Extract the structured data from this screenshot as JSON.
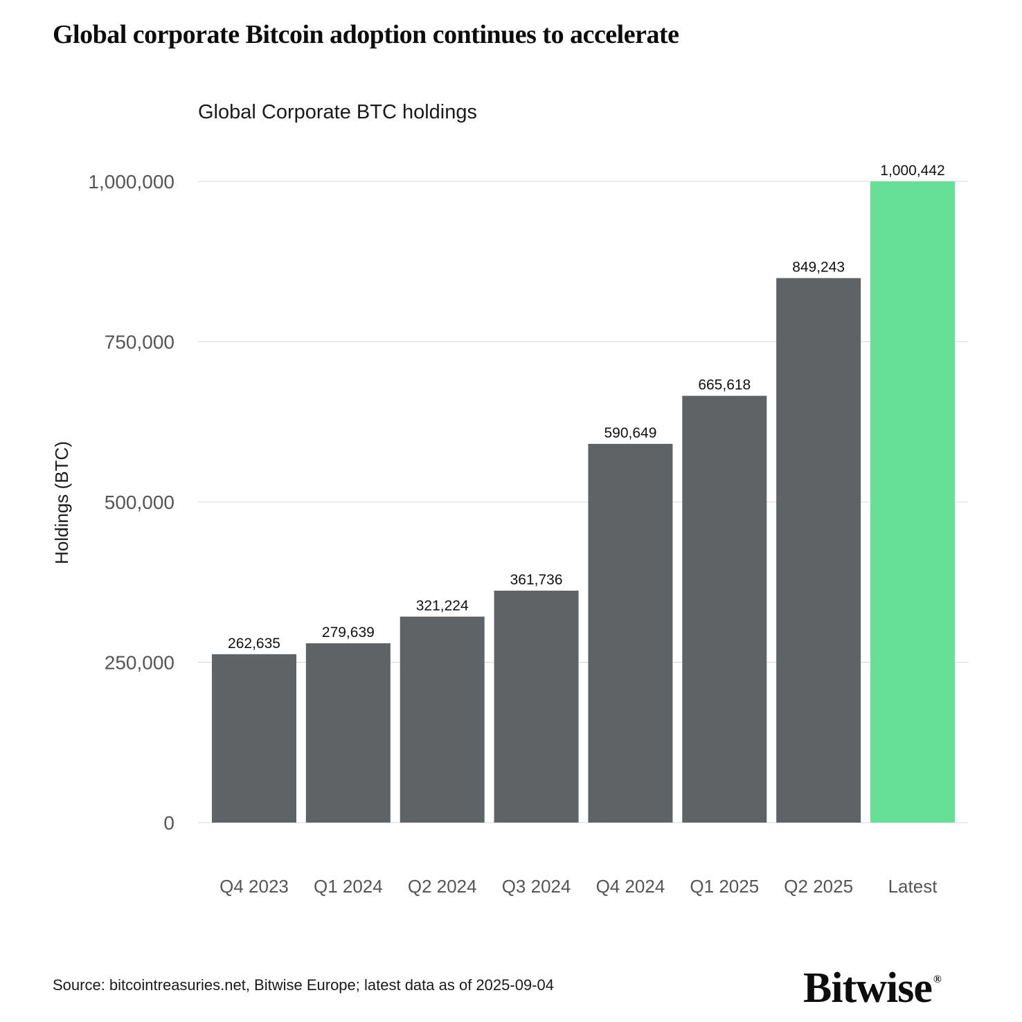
{
  "headline": "Global corporate Bitcoin adoption continues to accelerate",
  "source_note": "Source: bitcointreasuries.net, Bitwise Europe; latest data as of 2025-09-04",
  "brand": {
    "name": "Bitwise",
    "mark": "®"
  },
  "colors": {
    "bar": "#5f6366",
    "highlight": "#66e096",
    "grid": "#d9d9d9",
    "tick_text": "#555555"
  },
  "chart_data": {
    "type": "bar",
    "title": "Global Corporate BTC holdings",
    "xlabel": "",
    "ylabel": "Holdings (BTC)",
    "ylim": [
      0,
      1000000
    ],
    "yticks": [
      0,
      250000,
      500000,
      750000,
      1000000
    ],
    "ytick_labels": [
      "0",
      "250,000",
      "500,000",
      "750,000",
      "1,000,000"
    ],
    "categories": [
      "Q4 2023",
      "Q1 2024",
      "Q2 2024",
      "Q3 2024",
      "Q4 2024",
      "Q1 2025",
      "Q2 2025",
      "Latest"
    ],
    "values": [
      262635,
      279639,
      321224,
      361736,
      590649,
      665618,
      849243,
      1000442
    ],
    "value_labels": [
      "262,635",
      "279,639",
      "321,224",
      "361,736",
      "590,649",
      "665,618",
      "849,243",
      "1,000,442"
    ],
    "highlight": [
      "Latest"
    ],
    "grid": true
  }
}
